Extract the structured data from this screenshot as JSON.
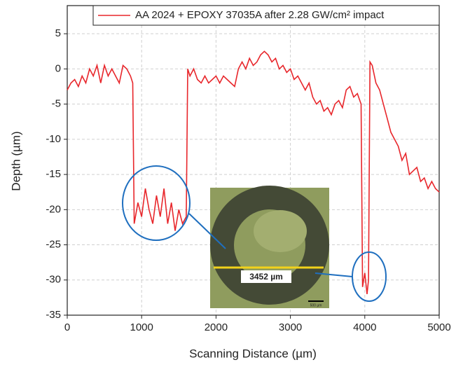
{
  "chart_data": {
    "type": "line",
    "xlabel": "Scanning Distance (µm)",
    "ylabel": "Depth (µm)",
    "x": [
      0,
      50,
      100,
      150,
      200,
      250,
      300,
      350,
      400,
      450,
      500,
      550,
      600,
      650,
      700,
      750,
      800,
      850,
      880,
      900,
      950,
      1000,
      1050,
      1100,
      1150,
      1200,
      1250,
      1300,
      1350,
      1400,
      1450,
      1500,
      1550,
      1600,
      1620,
      1650,
      1700,
      1750,
      1800,
      1850,
      1900,
      1950,
      2000,
      2050,
      2100,
      2150,
      2200,
      2250,
      2300,
      2350,
      2400,
      2450,
      2500,
      2550,
      2600,
      2650,
      2700,
      2750,
      2800,
      2850,
      2900,
      2950,
      3000,
      3050,
      3100,
      3150,
      3200,
      3250,
      3300,
      3350,
      3400,
      3450,
      3500,
      3550,
      3600,
      3650,
      3700,
      3750,
      3800,
      3850,
      3900,
      3950,
      3970,
      4000,
      4030,
      4050,
      4070,
      4100,
      4150,
      4200,
      4250,
      4300,
      4350,
      4400,
      4450,
      4500,
      4550,
      4600,
      4650,
      4700,
      4750,
      4800,
      4850,
      4900,
      4950,
      5000
    ],
    "series": [
      {
        "name": "AA 2024 + EPOXY 37035A after 2.28 GW/cm² impact",
        "color": "#e8262b",
        "values": [
          -3,
          -2,
          -1.5,
          -2.5,
          -1,
          -2,
          0,
          -1,
          0.5,
          -2,
          0.5,
          -1,
          0,
          -1,
          -2,
          0.5,
          0,
          -1,
          -2,
          -22,
          -19,
          -21,
          -17,
          -20,
          -22,
          -18,
          -21,
          -17,
          -22,
          -19,
          -23,
          -20,
          -22,
          -21,
          0,
          -1,
          0,
          -1.5,
          -2,
          -1,
          -2,
          -1.5,
          -1,
          -2,
          -1,
          -1.5,
          -2,
          -2.5,
          0,
          1,
          0,
          1.5,
          0.5,
          1,
          2,
          2.5,
          2,
          1,
          1.5,
          0,
          0.5,
          -0.5,
          0,
          -1.5,
          -1,
          -2,
          -3,
          -2,
          -4,
          -5,
          -4.5,
          -6,
          -5.5,
          -6.5,
          -5,
          -4.5,
          -5.5,
          -3,
          -2.5,
          -4,
          -3.5,
          -5,
          -31,
          -29,
          -32,
          -30,
          1,
          0.5,
          -2,
          -3,
          -5,
          -7,
          -9,
          -10,
          -11,
          -13,
          -12,
          -15,
          -14.5,
          -14,
          -16,
          -15.5,
          -17,
          -16,
          -17,
          -17.5
        ]
      }
    ],
    "xlim": [
      0,
      5000
    ],
    "xticks": [
      0,
      1000,
      2000,
      3000,
      4000,
      5000
    ],
    "ylim": [
      -35,
      9
    ],
    "yticks": [
      -35,
      -30,
      -25,
      -20,
      -15,
      -10,
      -5,
      0,
      5
    ],
    "grid": true,
    "annotations": [
      "3452 µm",
      "500 µm"
    ]
  }
}
